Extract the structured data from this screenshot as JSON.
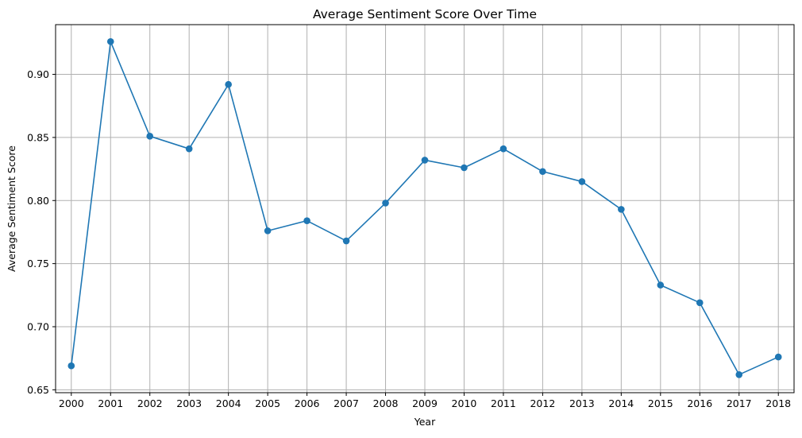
{
  "chart_data": {
    "type": "line",
    "title": "Average Sentiment Score Over Time",
    "xlabel": "Year",
    "ylabel": "Average Sentiment Score",
    "x": [
      2000,
      2001,
      2002,
      2003,
      2004,
      2005,
      2006,
      2007,
      2008,
      2009,
      2010,
      2011,
      2012,
      2013,
      2014,
      2015,
      2016,
      2017,
      2018
    ],
    "x_tick_labels": [
      "2000",
      "2001",
      "2002",
      "2003",
      "2004",
      "2005",
      "2006",
      "2007",
      "2008",
      "2009",
      "2010",
      "2011",
      "2012",
      "2013",
      "2014",
      "2015",
      "2016",
      "2017",
      "2018"
    ],
    "series": [
      {
        "values": [
          0.669,
          0.926,
          0.851,
          0.841,
          0.892,
          0.776,
          0.784,
          0.768,
          0.798,
          0.832,
          0.826,
          0.841,
          0.823,
          0.815,
          0.793,
          0.733,
          0.719,
          0.662,
          0.676
        ],
        "color": "#1f77b4",
        "marker": "circle"
      }
    ],
    "xlim": [
      1999.6,
      2018.4
    ],
    "ylim": [
      0.6477,
      0.9394
    ],
    "y_ticks": [
      0.65,
      0.7,
      0.75,
      0.8,
      0.85,
      0.9
    ],
    "y_tick_labels": [
      "0.65",
      "0.70",
      "0.75",
      "0.80",
      "0.85",
      "0.90"
    ],
    "grid": true,
    "legend": "none"
  }
}
